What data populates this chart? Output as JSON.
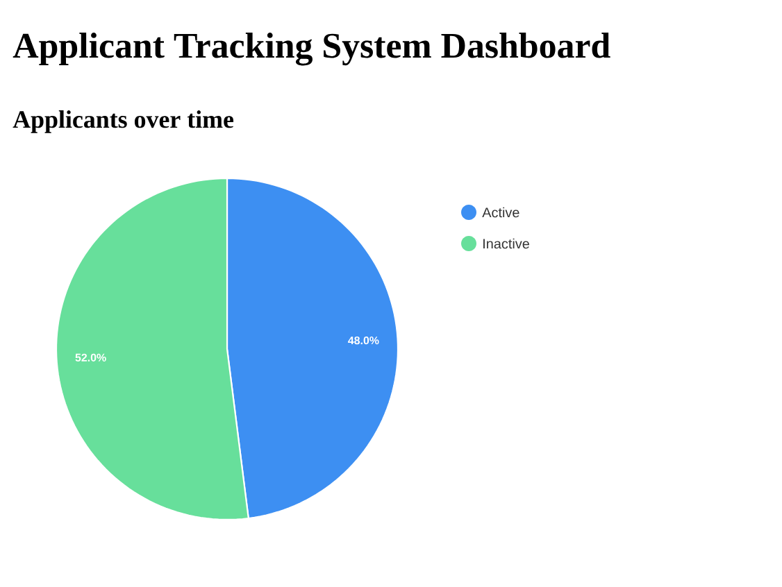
{
  "chart_data": {
    "type": "pie",
    "title": "Applicant Tracking System Dashboard",
    "subtitle": "Applicants over time",
    "categories": [
      "Active",
      "Inactive"
    ],
    "values": [
      48.0,
      52.0
    ],
    "colors": [
      "#3d8ff2",
      "#67df9b"
    ],
    "value_labels": [
      "48.0%",
      "52.0%"
    ],
    "legend": "right"
  }
}
